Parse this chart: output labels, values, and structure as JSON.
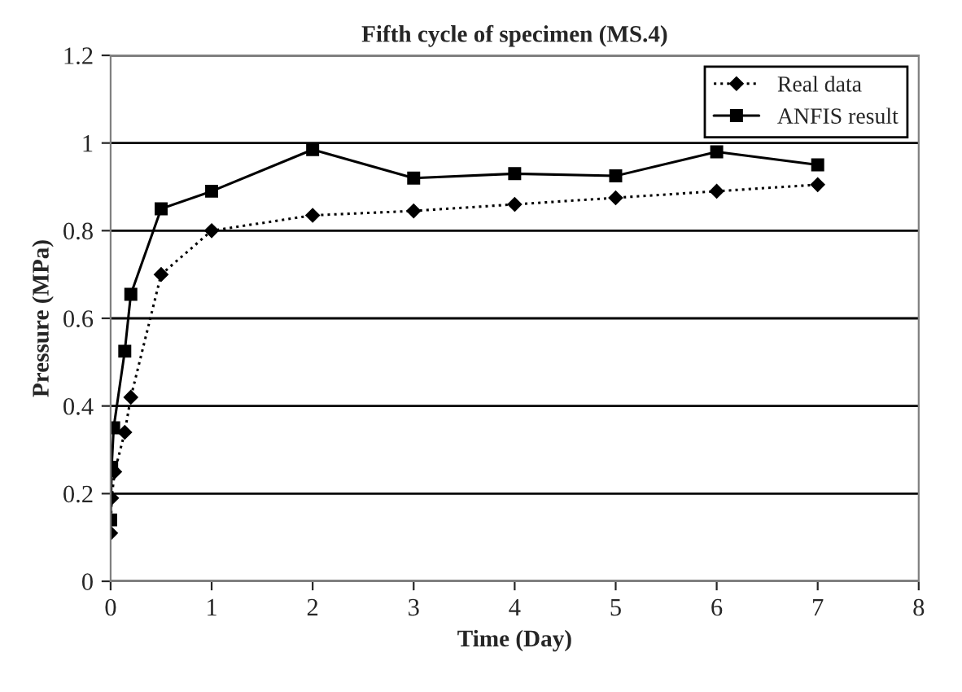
{
  "chart_data": {
    "type": "line",
    "title": "Fifth cycle of specimen (MS.4)",
    "xlabel": "Time (Day)",
    "ylabel": "Pressure (MPa)",
    "xlim": [
      0,
      8
    ],
    "xticks": [
      0,
      1,
      2,
      3,
      4,
      5,
      6,
      7,
      8
    ],
    "ylim": [
      0,
      1.2
    ],
    "yticks": [
      0,
      0.2,
      0.4,
      0.6,
      0.8,
      1,
      1.2
    ],
    "grid": "y",
    "legend": "top right",
    "series": [
      {
        "name": "Real data",
        "color": "#000000",
        "marker": "diamond",
        "line_style": "dotted",
        "x": [
          0,
          0.01,
          0.04,
          0.14,
          0.2,
          0.5,
          1,
          2,
          3,
          4,
          5,
          6,
          7
        ],
        "values": [
          0.11,
          0.19,
          0.25,
          0.34,
          0.42,
          0.7,
          0.8,
          0.835,
          0.845,
          0.86,
          0.875,
          0.89,
          0.905
        ]
      },
      {
        "name": "ANFIS result",
        "color": "#000000",
        "marker": "square",
        "line_style": "solid",
        "x": [
          0,
          0.01,
          0.03,
          0.14,
          0.2,
          0.5,
          1,
          2,
          3,
          4,
          5,
          6,
          7
        ],
        "values": [
          0.14,
          0.26,
          0.35,
          0.525,
          0.655,
          0.85,
          0.89,
          0.985,
          0.92,
          0.93,
          0.925,
          0.98,
          0.95
        ]
      }
    ]
  }
}
